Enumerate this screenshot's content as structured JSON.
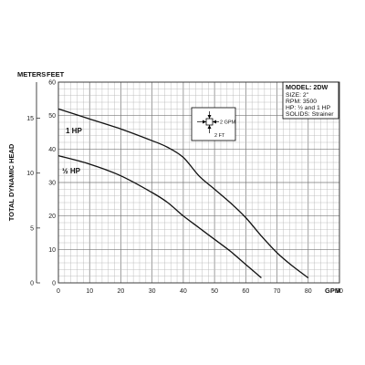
{
  "chart_data": {
    "type": "line",
    "ylabel": "TOTAL DYNAMIC HEAD",
    "y_unit_left": "METERS",
    "y_unit_right": "FEET",
    "x_unit": "GPM",
    "xlim": [
      0,
      90
    ],
    "ylim_feet": [
      0,
      60
    ],
    "x_ticks": [
      0,
      10,
      20,
      30,
      40,
      50,
      60,
      70,
      80,
      90
    ],
    "feet_ticks": [
      0,
      10,
      20,
      30,
      40,
      50,
      60
    ],
    "meter_ticks": [
      0,
      5,
      10,
      15
    ],
    "grid": true,
    "series": [
      {
        "name": "1 HP",
        "points": [
          [
            0,
            52
          ],
          [
            10,
            49
          ],
          [
            20,
            46
          ],
          [
            30,
            42.5
          ],
          [
            35,
            40.5
          ],
          [
            40,
            37.5
          ],
          [
            45,
            32
          ],
          [
            50,
            28
          ],
          [
            55,
            24
          ],
          [
            60,
            19.5
          ],
          [
            65,
            14
          ],
          [
            70,
            9
          ],
          [
            75,
            5
          ],
          [
            80,
            1.5
          ]
        ]
      },
      {
        "name": "½ HP",
        "points": [
          [
            0,
            38
          ],
          [
            10,
            35.5
          ],
          [
            20,
            32
          ],
          [
            30,
            27
          ],
          [
            35,
            24
          ],
          [
            40,
            20
          ],
          [
            45,
            16.5
          ],
          [
            50,
            13
          ],
          [
            55,
            9.5
          ],
          [
            60,
            5.5
          ],
          [
            65,
            1.5
          ]
        ]
      }
    ]
  },
  "spec_box": {
    "model": "MODEL: 2DW",
    "lines": [
      "SIZE: 2\"",
      "RPM: 3500",
      "HP: ½ and 1 HP",
      "SOLIDS: Strainer"
    ]
  },
  "grid_key": {
    "gpm_label": "2 GPM",
    "ft_label": "2 FT"
  }
}
